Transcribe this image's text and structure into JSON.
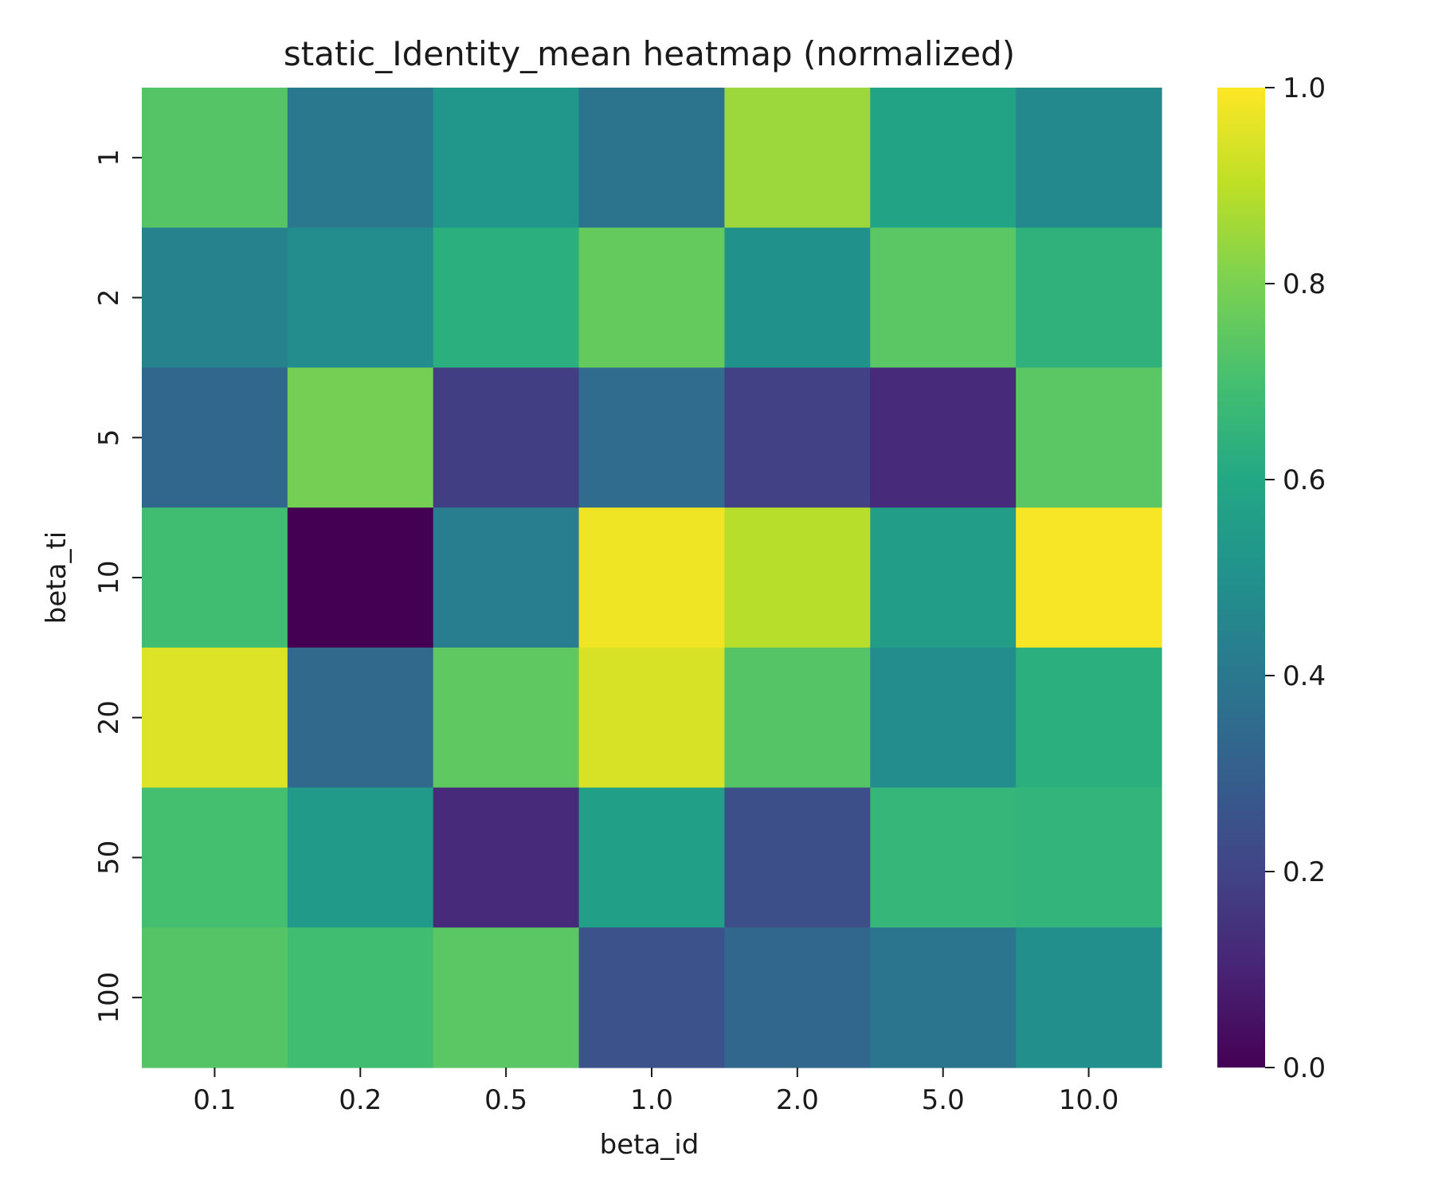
{
  "chart_data": {
    "type": "heatmap",
    "title": "static_Identity_mean heatmap (normalized)",
    "xlabel": "beta_id",
    "ylabel": "beta_ti",
    "x_categories": [
      "0.1",
      "0.2",
      "0.5",
      "1.0",
      "2.0",
      "5.0",
      "10.0"
    ],
    "y_categories": [
      "1",
      "2",
      "5",
      "10",
      "20",
      "50",
      "100"
    ],
    "values": [
      [
        0.73,
        0.4,
        0.52,
        0.38,
        0.85,
        0.58,
        0.47
      ],
      [
        0.44,
        0.48,
        0.63,
        0.76,
        0.5,
        0.74,
        0.64
      ],
      [
        0.33,
        0.79,
        0.18,
        0.35,
        0.19,
        0.12,
        0.74
      ],
      [
        0.69,
        0.0,
        0.42,
        0.98,
        0.89,
        0.55,
        0.99
      ],
      [
        0.95,
        0.34,
        0.75,
        0.94,
        0.73,
        0.48,
        0.63
      ],
      [
        0.7,
        0.54,
        0.12,
        0.56,
        0.24,
        0.66,
        0.65
      ],
      [
        0.73,
        0.69,
        0.74,
        0.25,
        0.33,
        0.39,
        0.49
      ]
    ],
    "colormap": "viridis",
    "colorbar": {
      "range": [
        0.0,
        1.0
      ],
      "ticks": [
        "0.0",
        "0.2",
        "0.4",
        "0.6",
        "0.8",
        "1.0"
      ]
    }
  }
}
